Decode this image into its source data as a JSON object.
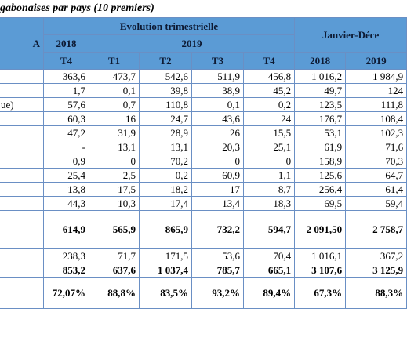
{
  "header": {
    "title": "gabonaises par pays (10 premiers)"
  },
  "table": {
    "header": {
      "unit": "A",
      "group_quarterly": "Evolution trimestrielle",
      "group_annual": "Janvier-Déce",
      "year_2018": "2018",
      "year_2019": "2019",
      "subcolumns": [
        "T4",
        "T1",
        "T2",
        "T3",
        "T4",
        "2018",
        "2019"
      ]
    },
    "rows": [
      {
        "cells": [
          "363,6",
          "473,7",
          "542,6",
          "511,9",
          "456,8",
          "1 016,2",
          "1 984,9"
        ]
      },
      {
        "cells": [
          "1,7",
          "0,1",
          "39,8",
          "38,9",
          "45,2",
          "49,7",
          "124"
        ]
      },
      {
        "label": "ue)",
        "cells": [
          "57,6",
          "0,7",
          "110,8",
          "0,1",
          "0,2",
          "123,5",
          "111,8"
        ]
      },
      {
        "cells": [
          "60,3",
          "16",
          "24,7",
          "43,6",
          "24",
          "176,7",
          "108,4"
        ]
      },
      {
        "cells": [
          "47,2",
          "31,9",
          "28,9",
          "26",
          "15,5",
          "53,1",
          "102,3"
        ]
      },
      {
        "cells": [
          "-",
          "13,1",
          "13,1",
          "20,3",
          "25,1",
          "61,9",
          "71,6"
        ]
      },
      {
        "cells": [
          "0,9",
          "0",
          "70,2",
          "0",
          "0",
          "158,9",
          "70,3"
        ]
      },
      {
        "cells": [
          "25,4",
          "2,5",
          "0,2",
          "60,9",
          "1,1",
          "125,6",
          "64,7"
        ]
      },
      {
        "cells": [
          "13,8",
          "17,5",
          "18,2",
          "17",
          "8,7",
          "256,4",
          "61,4"
        ]
      },
      {
        "cells": [
          "44,3",
          "10,3",
          "17,4",
          "13,4",
          "18,3",
          "69,5",
          "59,4"
        ]
      },
      {
        "cells": [
          "614,9",
          "565,9",
          "865,9",
          "732,2",
          "594,7",
          "2 091,50",
          "2 758,7"
        ],
        "bold": true,
        "tall": true
      },
      {
        "cells": [
          "238,3",
          "71,7",
          "171,5",
          "53,6",
          "70,4",
          "1 016,1",
          "367,2"
        ]
      },
      {
        "cells": [
          "853,2",
          "637,6",
          "1 037,4",
          "785,7",
          "665,1",
          "3 107,6",
          "3 125,9"
        ],
        "bold": true
      },
      {
        "cells": [
          "72,07%",
          "88,8%",
          "83,5%",
          "93,2%",
          "89,4%",
          "67,3%",
          "88,3%"
        ],
        "bold": true,
        "tall2": true
      }
    ]
  }
}
